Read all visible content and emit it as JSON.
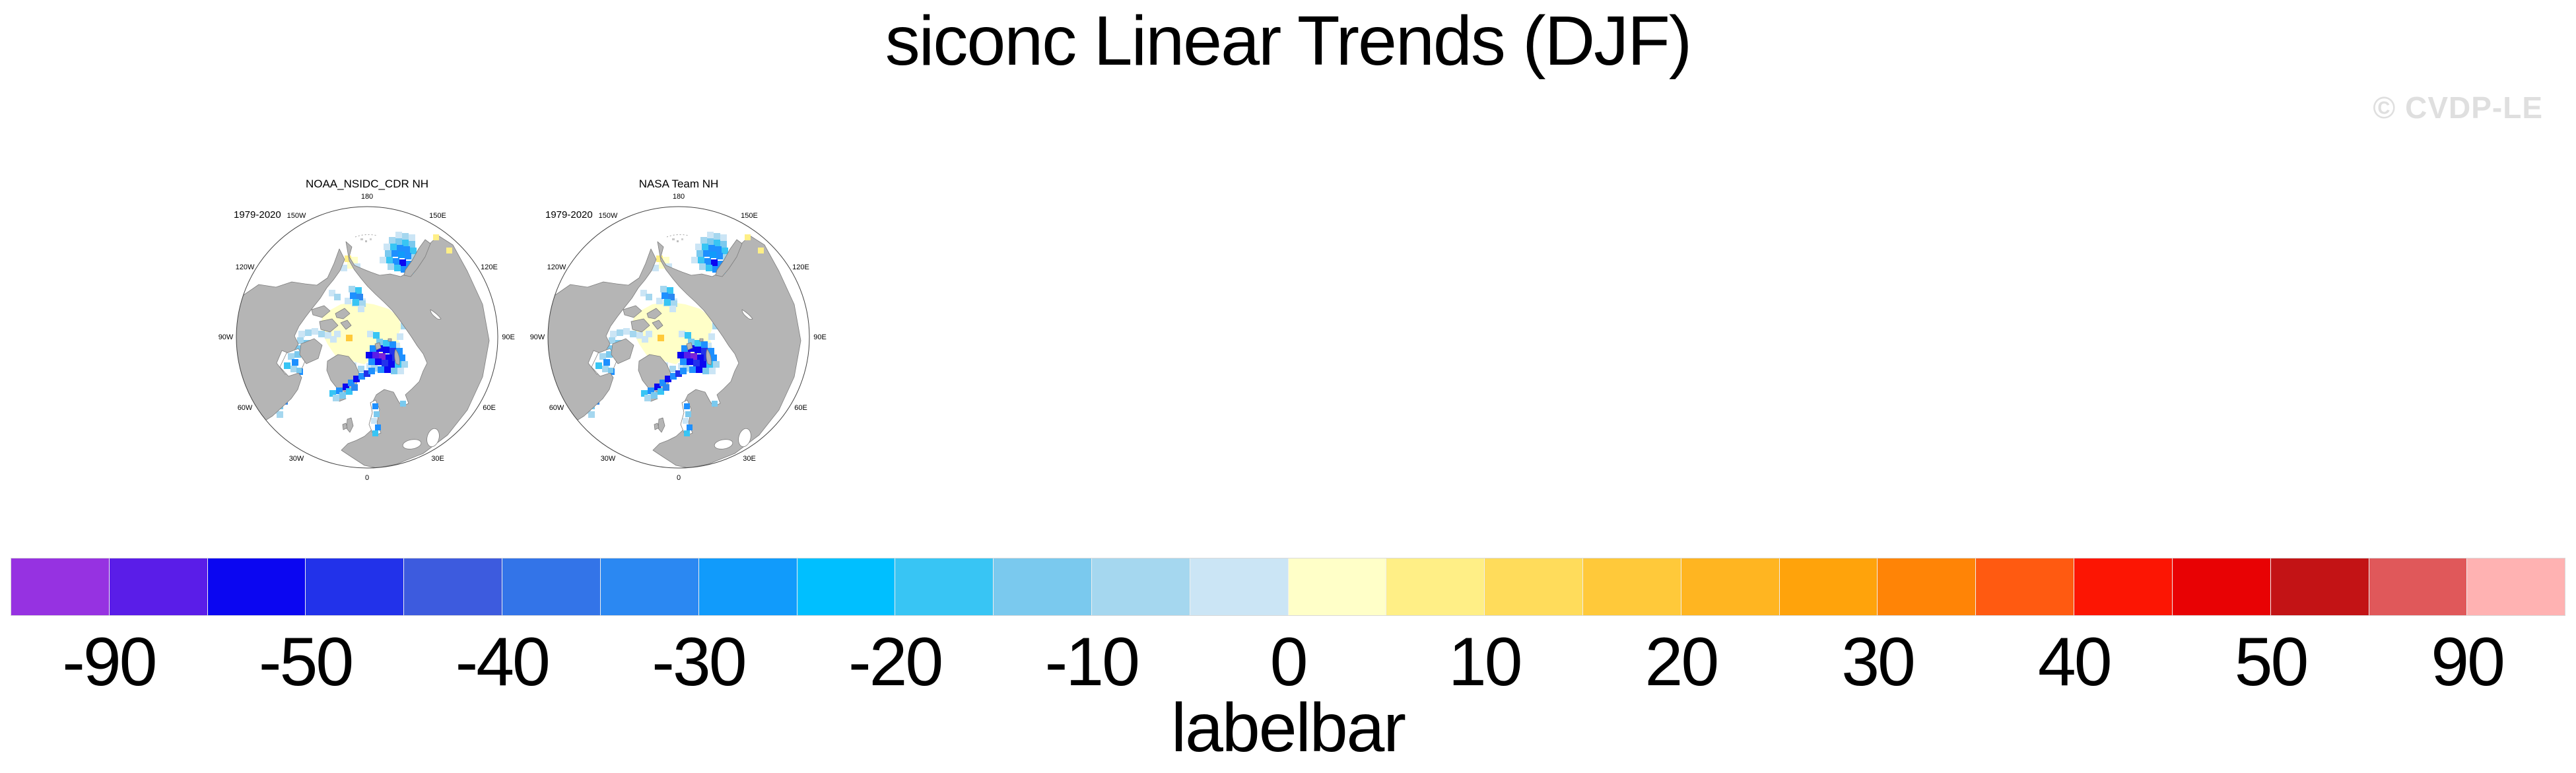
{
  "header": {
    "title": "siconc Linear Trends (DJF)",
    "watermark": "© CVDP-LE"
  },
  "maps": {
    "panels": [
      {
        "title": "NOAA_NSIDC_CDR NH",
        "period": "1979-2020"
      },
      {
        "title": "NASA Team NH",
        "period": "1979-2020"
      }
    ],
    "lon_labels": [
      "180",
      "150W",
      "150E",
      "120W",
      "120E",
      "90W",
      "90E",
      "60W",
      "60E",
      "30W",
      "30E",
      "0"
    ]
  },
  "colorbar": {
    "title": "labelbar",
    "tick_labels": [
      "-90",
      "-50",
      "-40",
      "-30",
      "-20",
      "-10",
      "0",
      "10",
      "20",
      "30",
      "40",
      "50",
      "90"
    ],
    "colors": [
      "#9632E1",
      "#5A1DE8",
      "#0B06F1",
      "#2232EA",
      "#3D5BDE",
      "#3374E8",
      "#2B88F2",
      "#119BFB",
      "#00BFFF",
      "#38C5F4",
      "#7AC9EE",
      "#A5D7EF",
      "#CBE5F5",
      "#FFFFC8",
      "#FFEF86",
      "#FFDC5B",
      "#FFC93A",
      "#FFB521",
      "#FFA30B",
      "#FF8406",
      "#FF5A11",
      "#FC1503",
      "#E80204",
      "#C31315",
      "#E0585A",
      "#FFB2B2"
    ]
  },
  "chart_data": {
    "type": "heatmap",
    "title": "siconc Linear Trends (DJF)",
    "projection": "polar-stereographic-northern-hemisphere",
    "panels": [
      {
        "title": "NOAA_NSIDC_CDR NH",
        "period": "1979-2020"
      },
      {
        "title": "NASA Team NH",
        "period": "1979-2020"
      }
    ],
    "longitude_ring_labels": [
      "180",
      "150W",
      "150E",
      "120W",
      "120E",
      "90W",
      "90E",
      "60W",
      "60E",
      "30W",
      "30E",
      "0"
    ],
    "colorbar_title": "labelbar",
    "levels": [
      -90,
      -70,
      -50,
      -45,
      -40,
      -35,
      -30,
      -25,
      -20,
      -15,
      -10,
      -5,
      0,
      5,
      10,
      15,
      20,
      25,
      30,
      35,
      40,
      45,
      50,
      70,
      90
    ],
    "labeled_levels": [
      -90,
      -50,
      -40,
      -30,
      -20,
      -10,
      0,
      10,
      20,
      30,
      40,
      50,
      90
    ],
    "palette": [
      "#9632E1",
      "#5A1DE8",
      "#0B06F1",
      "#2232EA",
      "#3D5BDE",
      "#3374E8",
      "#2B88F2",
      "#119BFB",
      "#00BFFF",
      "#38C5F4",
      "#7AC9EE",
      "#A5D7EF",
      "#CBE5F5",
      "#FFFFC8",
      "#FFEF86",
      "#FFDC5B",
      "#FFC93A",
      "#FFB521",
      "#FFA30B",
      "#FF8406",
      "#FF5A11",
      "#FC1503",
      "#E80204",
      "#C31315",
      "#E0585A",
      "#FFB2B2"
    ],
    "land_color": "#B5B5B5",
    "no_data_ocean_color": "#FFFFFF",
    "features": "Both panels show near-identical DJF sea-ice concentration trends 1979-2020: strong negative trends (blues, -20 to -50 %/decade scale) in the Sea of Okhotsk, Bering Strait, Barents/Kara Seas (with darkest blue-purple cells near Novaya Zemlya/Svalbard), along the southeast Greenland coast, Labrador Sea and Gulf of St. Lawrence, and Baltic Sea; weak positive trends (pale yellow, 0-10) across the central Arctic pack; gray land, white ocean where no trend plotted."
  }
}
